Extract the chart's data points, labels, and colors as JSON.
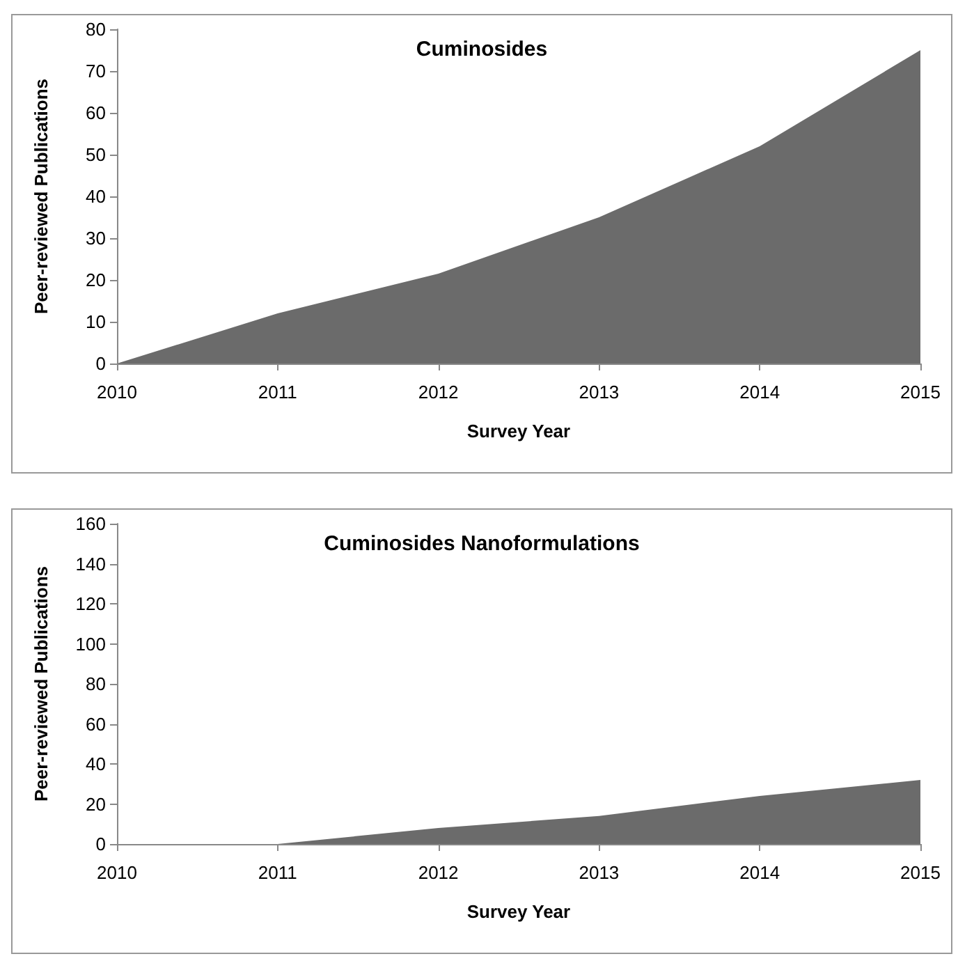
{
  "chart_data": [
    {
      "type": "area",
      "title": "Cuminosides",
      "xlabel": "Survey Year",
      "ylabel": "Peer-reviewed Publications",
      "categories": [
        "2010",
        "2011",
        "2012",
        "2013",
        "2014",
        "2015"
      ],
      "series": [
        {
          "color": "#6b6b6b",
          "values": [
            0,
            12,
            21.5,
            35,
            52,
            75
          ]
        }
      ],
      "ylim": [
        0,
        80
      ],
      "yticks": [
        0,
        10,
        20,
        30,
        40,
        50,
        60,
        70,
        80
      ],
      "grid": false
    },
    {
      "type": "area",
      "title": "Cuminosides Nanoformulations",
      "xlabel": "Survey Year",
      "ylabel": "Peer-reviewed Publications",
      "categories": [
        "2010",
        "2011",
        "2012",
        "2013",
        "2014",
        "2015"
      ],
      "series": [
        {
          "color": "#6b6b6b",
          "values": [
            0,
            0,
            8,
            14,
            24,
            32
          ]
        }
      ],
      "ylim": [
        0,
        160
      ],
      "yticks": [
        0,
        20,
        40,
        60,
        80,
        100,
        120,
        140,
        160
      ],
      "grid": false
    }
  ]
}
